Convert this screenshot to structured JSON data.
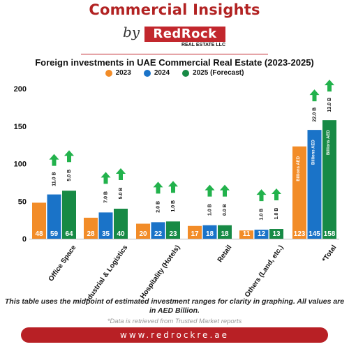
{
  "header": {
    "title": "Commercial Insights",
    "by": "by",
    "logo_main": "RedRock",
    "logo_sub": "REAL ESTATE LLC"
  },
  "colors": {
    "series_2023": "#f28c28",
    "series_2024": "#1a73c8",
    "series_2025": "#178a45",
    "arrow": "#22b24c",
    "brand_red": "#b82025"
  },
  "chart_data": {
    "type": "bar",
    "title": "Foreign investments in UAE Commercial Real Estate (2023-2025)",
    "categories": [
      "Office Space",
      "Industrial & Logistics",
      "Hospitality (Hotels)",
      "Retail",
      "Others (Land, etc.)",
      "*Total"
    ],
    "series": [
      {
        "name": "2023",
        "values": [
          48,
          28,
          20,
          17,
          11,
          123
        ]
      },
      {
        "name": "2024",
        "values": [
          59,
          35,
          22,
          18,
          12,
          145
        ]
      },
      {
        "name": "2025 (Forecast)",
        "values": [
          64,
          40,
          23,
          18,
          13,
          158
        ]
      }
    ],
    "growth_labels": [
      [
        "11.0 B",
        "5.0 B"
      ],
      [
        "7.0 B",
        "5.0 B"
      ],
      [
        "2.0 B",
        "1.0 B"
      ],
      [
        "1.0 B",
        "0.0 B"
      ],
      [
        "1.0 B",
        "1.0 B"
      ],
      [
        "22.0 B",
        "13.0 B"
      ]
    ],
    "total_bar_label": "Billions AED",
    "yticks": [
      0,
      50,
      100,
      150,
      200
    ],
    "ylim": [
      0,
      200
    ],
    "legend_position": "top-center",
    "grid": false
  },
  "footer": {
    "note": "This table uses the midpoint of estimated investment ranges for clarity in graphing. All values are in AED Billion.",
    "source": "*Data is retrieved from Trusted Market reports",
    "website": "www.redrockre.ae"
  }
}
